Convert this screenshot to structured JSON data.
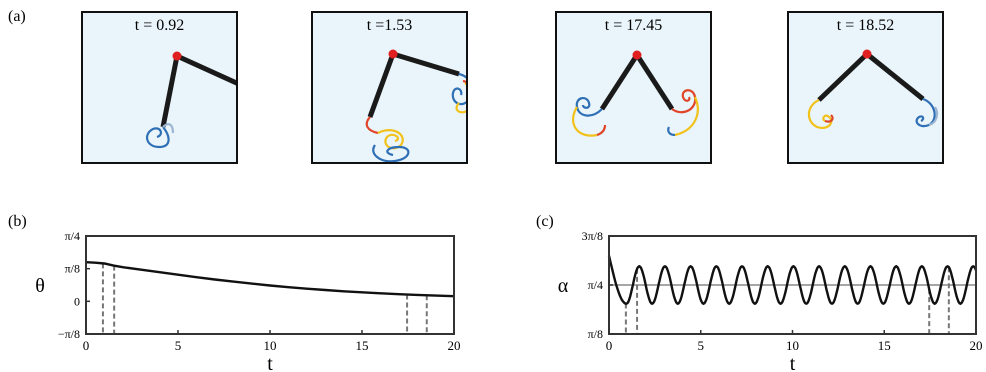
{
  "panel_labels": {
    "a": "(a)",
    "b": "(b)",
    "c": "(c)"
  },
  "snapshots": [
    {
      "time_label": "t = 0.92"
    },
    {
      "time_label": "t =1.53"
    },
    {
      "time_label": "t = 17.45"
    },
    {
      "time_label": "t = 18.52"
    }
  ],
  "colors": {
    "pivot": "#e02020",
    "arm": "#1a1a1a",
    "background": "#e9f5fb",
    "vortex_blue": "#2f6fb5",
    "vortex_yellow": "#f2c21a",
    "vortex_red": "#e0452a"
  },
  "chart_data": [
    {
      "type": "line",
      "title": "",
      "xlabel": "t",
      "ylabel": "θ",
      "xlim": [
        0,
        20
      ],
      "ylim": [
        -0.3927,
        0.7854
      ],
      "xticks": [
        0,
        5,
        10,
        15,
        20
      ],
      "xtick_labels": [
        "0",
        "5",
        "10",
        "15",
        "20"
      ],
      "yticks": [
        -0.3927,
        0,
        0.3927,
        0.7854
      ],
      "ytick_labels": [
        "−π/8",
        "0",
        "π/8",
        "π/4"
      ],
      "series": [
        {
          "x": [
            0,
            0.5,
            1,
            1.5,
            2,
            3,
            4,
            5,
            6,
            7,
            8,
            9,
            10,
            11,
            12,
            13,
            14,
            15,
            16,
            17,
            18,
            19,
            20
          ],
          "y": [
            0.47,
            0.465,
            0.455,
            0.43,
            0.41,
            0.38,
            0.35,
            0.32,
            0.29,
            0.262,
            0.237,
            0.213,
            0.19,
            0.17,
            0.152,
            0.136,
            0.121,
            0.108,
            0.096,
            0.086,
            0.077,
            0.069,
            0.062
          ]
        }
      ],
      "markers_x": [
        0.92,
        1.53,
        17.45,
        18.52
      ],
      "hline": null
    },
    {
      "type": "line",
      "title": "",
      "xlabel": "t",
      "ylabel": "α",
      "xlim": [
        0,
        20
      ],
      "ylim": [
        0.3927,
        1.1781
      ],
      "xticks": [
        0,
        5,
        10,
        15,
        20
      ],
      "xtick_labels": [
        "0",
        "5",
        "10",
        "15",
        "20"
      ],
      "yticks": [
        0.3927,
        0.7854,
        1.1781
      ],
      "ytick_labels": [
        "π/8",
        "π/4",
        "3π/8"
      ],
      "series": [
        {
          "oscillation": {
            "mean": 0.7854,
            "amplitude": 0.15,
            "period": 1.4,
            "phase_t": 0.95,
            "initial": 1.02
          }
        }
      ],
      "markers_x": [
        0.92,
        1.53,
        17.45,
        18.52
      ],
      "hline": 0.7854
    }
  ]
}
